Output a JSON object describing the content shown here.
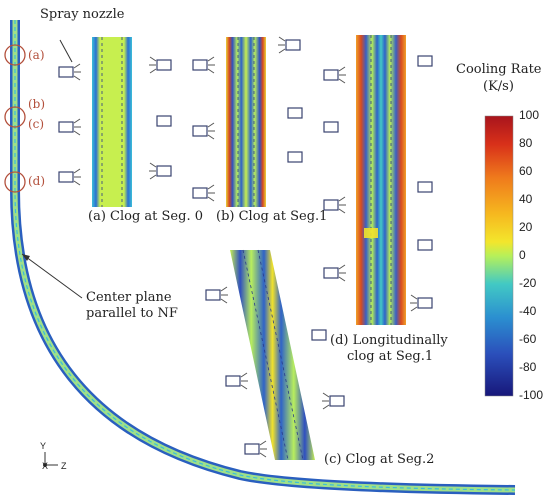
{
  "labels": {
    "spray_nozzle": "Spray nozzle",
    "panel_a": "(a) Clog at Seg. 0",
    "panel_b": "(b) Clog at Seg.1",
    "panel_c": "(c) Clog at Seg.2",
    "panel_d_line1": "(d) Longitudinally",
    "panel_d_line2": "clog at Seg.1",
    "center_plane_line1": "Center plane",
    "center_plane_line2": "parallel to NF"
  },
  "markers": {
    "a": "(a)",
    "b": "(b)",
    "c": "(c)",
    "d": "(d)"
  },
  "axes": {
    "y": "Y",
    "x": "X",
    "z": "Z"
  },
  "colorbar": {
    "title_line1": "Cooling Rate",
    "title_line2": "(K/s)",
    "ticks": [
      "100",
      "80",
      "60",
      "40",
      "20",
      "0",
      "-20",
      "-40",
      "-60",
      "-80",
      "-100"
    ],
    "colors": [
      "#b51a1a",
      "#e0471a",
      "#f07f1c",
      "#f6b320",
      "#f2e32a",
      "#b8ee5e",
      "#3fc8c8",
      "#2a8ed0",
      "#2c5fc4",
      "#26349e",
      "#1a1a7a"
    ]
  }
}
